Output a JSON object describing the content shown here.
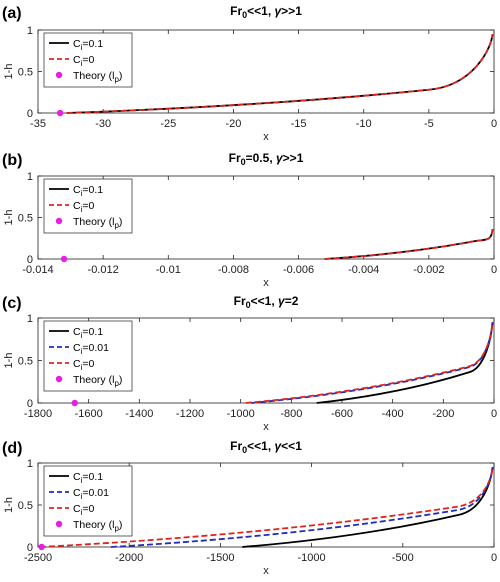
{
  "colors": {
    "black": "#000000",
    "blue": "#1f2dbf",
    "red": "#e0241c",
    "magenta": "#e81ee8"
  },
  "chart_data": [
    {
      "type": "line",
      "panel_label": "(a)",
      "title": {
        "a": "Fr",
        "b": "0",
        "c": "<<1, ",
        "d": "γ",
        "e": ">>1"
      },
      "xlabel": "x",
      "ylabel": "1-h",
      "xlim": [
        -35,
        0
      ],
      "ylim": [
        0,
        1
      ],
      "xticks": [
        -35,
        -30,
        -25,
        -20,
        -15,
        -10,
        -5,
        0
      ],
      "xtick_labels": [
        "-35",
        "-30",
        "-25",
        "-20",
        "-15",
        "-10",
        "-5",
        "0"
      ],
      "yticks": [
        0,
        0.5,
        1
      ],
      "ytick_labels": [
        "0",
        "0.5",
        "1"
      ],
      "series": [
        {
          "name": "C_i=0.1",
          "legend": [
            "C",
            "i",
            "=0.1"
          ],
          "style": "solid",
          "color": "black",
          "x0": -32.8,
          "y0": 0.0,
          "x1": -5,
          "y1": 0.28,
          "yend": 0.95
        },
        {
          "name": "C_i=0",
          "legend": [
            "C",
            "i",
            "=0"
          ],
          "style": "dashed",
          "color": "red",
          "x0": -32.8,
          "y0": 0.0,
          "x1": -5,
          "y1": 0.28,
          "yend": 0.95
        }
      ],
      "theory": {
        "legend": [
          "Theory (l",
          "p",
          ")"
        ],
        "x": -33.3,
        "y": 0
      }
    },
    {
      "type": "line",
      "panel_label": "(b)",
      "title": {
        "a": "Fr",
        "b": "0",
        "c": "=0.5, ",
        "d": "γ",
        "e": ">>1"
      },
      "xlabel": "x",
      "ylabel": "1-h",
      "xlim": [
        -0.014,
        0
      ],
      "ylim": [
        0,
        1
      ],
      "xticks": [
        -0.014,
        -0.012,
        -0.01,
        -0.008,
        -0.006,
        -0.004,
        -0.002,
        0
      ],
      "xtick_labels": [
        "-0.014",
        "-0.012",
        "-0.01",
        "-0.008",
        "-0.006",
        "-0.004",
        "-0.002",
        "0"
      ],
      "yticks": [
        0,
        0.5,
        1
      ],
      "ytick_labels": [
        "0",
        "0.5",
        "1"
      ],
      "series": [
        {
          "name": "C_i=0.1",
          "legend": [
            "C",
            "i",
            "=0.1"
          ],
          "style": "solid",
          "color": "black",
          "x0": -0.0052,
          "y0": 0.0,
          "x1": -0.0008,
          "y1": 0.2,
          "yend": 0.36
        },
        {
          "name": "C_i=0",
          "legend": [
            "C",
            "i",
            "=0"
          ],
          "style": "dashed",
          "color": "red",
          "x0": -0.0052,
          "y0": 0.0,
          "x1": -0.0008,
          "y1": 0.2,
          "yend": 0.36
        }
      ],
      "theory": {
        "legend": [
          "Theory (l",
          "p",
          ")"
        ],
        "x": -0.0132,
        "y": 0
      }
    },
    {
      "type": "line",
      "panel_label": "(c)",
      "title": {
        "a": "Fr",
        "b": "0",
        "c": "<<1, ",
        "d": "γ",
        "e": "=2"
      },
      "xlabel": "x",
      "ylabel": "1-h",
      "xlim": [
        -1800,
        0
      ],
      "ylim": [
        0,
        1
      ],
      "xticks": [
        -1800,
        -1600,
        -1400,
        -1200,
        -1000,
        -800,
        -600,
        -400,
        -200,
        0
      ],
      "xtick_labels": [
        "-1800",
        "-1600",
        "-1400",
        "-1200",
        "-1000",
        "-800",
        "-600",
        "-400",
        "-200",
        "0"
      ],
      "yticks": [
        0,
        0.5,
        1
      ],
      "ytick_labels": [
        "0",
        "0.5",
        "1"
      ],
      "series": [
        {
          "name": "C_i=0.1",
          "legend": [
            "C",
            "i",
            "=0.1"
          ],
          "style": "solid",
          "color": "black",
          "x0": -700,
          "y0": 0.0,
          "x1": -100,
          "y1": 0.36,
          "yend": 0.95
        },
        {
          "name": "C_i=0.01",
          "legend": [
            "C",
            "i",
            "=0.01"
          ],
          "style": "dashed",
          "color": "blue",
          "x0": -960,
          "y0": 0.0,
          "x1": -100,
          "y1": 0.42,
          "yend": 0.95
        },
        {
          "name": "C_i=0",
          "legend": [
            "C",
            "i",
            "=0"
          ],
          "style": "dashed",
          "color": "red",
          "x0": -980,
          "y0": 0.0,
          "x1": -100,
          "y1": 0.43,
          "yend": 0.95
        }
      ],
      "theory": {
        "legend": [
          "Theory (l",
          "p",
          ")"
        ],
        "x": -1655,
        "y": 0
      }
    },
    {
      "type": "line",
      "panel_label": "(d)",
      "title": {
        "a": "Fr",
        "b": "0",
        "c": "<<1, ",
        "d": "γ",
        "e": "<<1"
      },
      "xlabel": "x",
      "ylabel": "1-h",
      "xlim": [
        -2500,
        0
      ],
      "ylim": [
        0,
        1
      ],
      "xticks": [
        -2500,
        -2000,
        -1500,
        -1000,
        -500,
        0
      ],
      "xtick_labels": [
        "-2500",
        "-2000",
        "-1500",
        "-1000",
        "-500",
        "0"
      ],
      "yticks": [
        0,
        0.5,
        1
      ],
      "ytick_labels": [
        "0",
        "0.5",
        "1"
      ],
      "series": [
        {
          "name": "C_i=0.1",
          "legend": [
            "C",
            "i",
            "=0.1"
          ],
          "style": "solid",
          "color": "black",
          "x0": -1380,
          "y0": 0.0,
          "x1": -200,
          "y1": 0.38,
          "yend": 0.95
        },
        {
          "name": "C_i=0.01",
          "legend": [
            "C",
            "i",
            "=0.01"
          ],
          "style": "dashed",
          "color": "blue",
          "x0": -2100,
          "y0": 0.0,
          "x1": -200,
          "y1": 0.44,
          "yend": 0.95
        },
        {
          "name": "C_i=0",
          "legend": [
            "C",
            "i",
            "=0"
          ],
          "style": "dashed",
          "color": "red",
          "x0": -2490,
          "y0": 0.0,
          "x1": -200,
          "y1": 0.48,
          "yend": 0.95
        }
      ],
      "theory": {
        "legend": [
          "Theory (l",
          "p",
          ")"
        ],
        "x": -2480,
        "y": 0
      }
    }
  ]
}
